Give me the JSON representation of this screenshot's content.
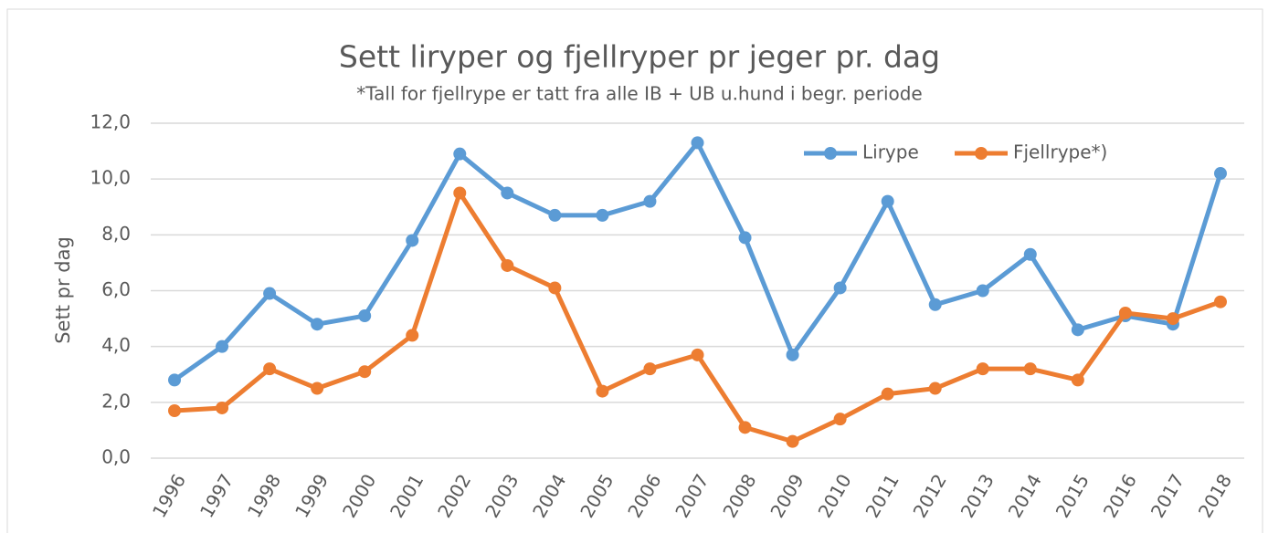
{
  "chart_data": {
    "type": "line",
    "title": "Sett liryper og fjellryper pr jeger pr. dag",
    "subtitle": "*Tall for fjellrype er tatt fra alle IB + UB u.hund i begr. periode",
    "y_label": "Sett pr dag",
    "categories": [
      "1996",
      "1997",
      "1998",
      "1999",
      "2000",
      "2001",
      "2002",
      "2003",
      "2004",
      "2005",
      "2006",
      "2007",
      "2008",
      "2009",
      "2010",
      "2011",
      "2012",
      "2013",
      "2014",
      "2015",
      "2016",
      "2017",
      "2018"
    ],
    "series": [
      {
        "name": "Lirype",
        "color": "#5b9bd5",
        "values": [
          2.8,
          4.0,
          5.9,
          4.8,
          5.1,
          7.8,
          10.9,
          9.5,
          8.7,
          8.7,
          9.2,
          11.3,
          7.9,
          3.7,
          6.1,
          9.2,
          5.5,
          6.0,
          7.3,
          4.6,
          5.1,
          4.8,
          10.2
        ]
      },
      {
        "name": "Fjellrype*)",
        "color": "#ed7d31",
        "values": [
          1.7,
          1.8,
          3.2,
          2.5,
          3.1,
          4.4,
          9.5,
          6.9,
          6.1,
          2.4,
          3.2,
          3.7,
          1.1,
          0.6,
          1.4,
          2.3,
          2.5,
          3.2,
          3.2,
          2.8,
          5.2,
          5.0,
          5.6
        ]
      }
    ],
    "ylim": [
      0,
      12
    ],
    "yticks": [
      {
        "value": 0,
        "label": "0,0"
      },
      {
        "value": 2,
        "label": "2,0"
      },
      {
        "value": 4,
        "label": "4,0"
      },
      {
        "value": 6,
        "label": "6,0"
      },
      {
        "value": 8,
        "label": "8,0"
      },
      {
        "value": 10,
        "label": "10,0"
      },
      {
        "value": 12,
        "label": "12,0"
      }
    ],
    "grid": true,
    "legend": "upper right"
  }
}
